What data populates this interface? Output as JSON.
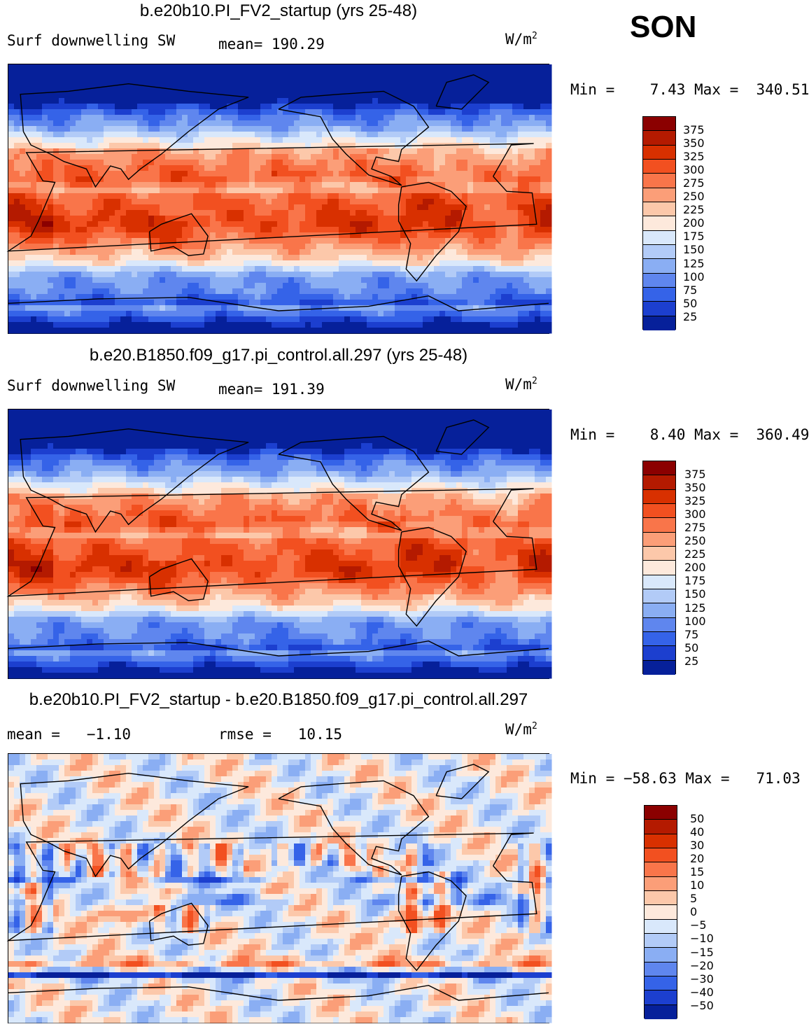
{
  "season": "SON",
  "units_base": "W/m",
  "units_exp": "2",
  "panels": [
    {
      "title": "b.e20b10.PI_FV2_startup (yrs 25-48)",
      "left_label": "Surf downwelling SW",
      "mid_label": "mean= 190.29",
      "minmax": "Min =    7.43 Max =  340.51",
      "levels": [
        "375",
        "350",
        "325",
        "300",
        "275",
        "250",
        "225",
        "200",
        "175",
        "150",
        "125",
        "100",
        "75",
        "50",
        "25"
      ]
    },
    {
      "title": "b.e20.B1850.f09_g17.pi_control.all.297 (yrs 25-48)",
      "left_label": "Surf downwelling SW",
      "mid_label": "mean= 191.39",
      "minmax": "Min =    8.40 Max =  360.49",
      "levels": [
        "375",
        "350",
        "325",
        "300",
        "275",
        "250",
        "225",
        "200",
        "175",
        "150",
        "125",
        "100",
        "75",
        "50",
        "25"
      ]
    },
    {
      "title": "b.e20b10.PI_FV2_startup - b.e20.B1850.f09_g17.pi_control.all.297",
      "left_label": "mean =   −1.10",
      "mid_label": "rmse =   10.15",
      "minmax": "Min = −58.63 Max =   71.03",
      "levels": [
        "50",
        "40",
        "30",
        "20",
        "15",
        "10",
        "5",
        "0",
        "−5",
        "−10",
        "−15",
        "−20",
        "−30",
        "−40",
        "−50"
      ]
    }
  ],
  "chart_data": [
    {
      "type": "heatmap",
      "title": "b.e20b10.PI_FV2_startup (yrs 25-48)",
      "variable": "Surf downwelling SW",
      "units": "W/m2",
      "mean": 190.29,
      "min": 7.43,
      "max": 340.51,
      "contour_levels": [
        25,
        50,
        75,
        100,
        125,
        150,
        175,
        200,
        225,
        250,
        275,
        300,
        325,
        350,
        375
      ]
    },
    {
      "type": "heatmap",
      "title": "b.e20.B1850.f09_g17.pi_control.all.297 (yrs 25-48)",
      "variable": "Surf downwelling SW",
      "units": "W/m2",
      "mean": 191.39,
      "min": 8.4,
      "max": 360.49,
      "contour_levels": [
        25,
        50,
        75,
        100,
        125,
        150,
        175,
        200,
        225,
        250,
        275,
        300,
        325,
        350,
        375
      ]
    },
    {
      "type": "heatmap",
      "title": "b.e20b10.PI_FV2_startup - b.e20.B1850.f09_g17.pi_control.all.297",
      "units": "W/m2",
      "mean": -1.1,
      "rmse": 10.15,
      "min": -58.63,
      "max": 71.03,
      "contour_levels": [
        -50,
        -40,
        -30,
        -20,
        -15,
        -10,
        -5,
        0,
        5,
        10,
        15,
        20,
        30,
        40,
        50
      ]
    }
  ],
  "colors": {
    "scale": [
      "#8b0000",
      "#b41a00",
      "#d83000",
      "#f25020",
      "#f9754a",
      "#fb9e78",
      "#fcc8aa",
      "#fde9dc",
      "#d9e8fb",
      "#b2cbf7",
      "#8aaef3",
      "#5f86ee",
      "#3563e8",
      "#1c3fcf",
      "#06209a"
    ],
    "ocean_cool": "#b8d0f8",
    "polar": "#0d2ca8"
  }
}
